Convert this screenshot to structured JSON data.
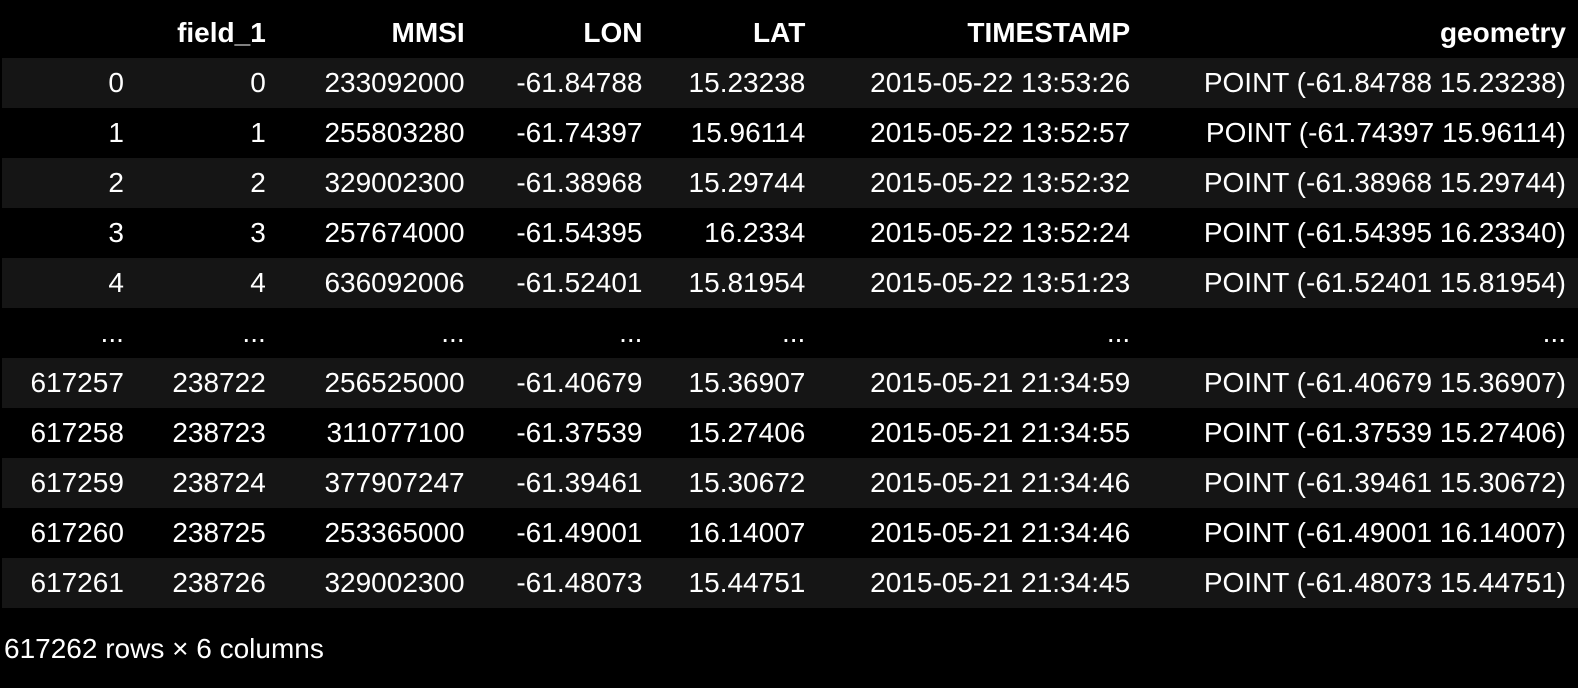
{
  "dataframe": {
    "columns": [
      "",
      "field_1",
      "MMSI",
      "LON",
      "LAT",
      "TIMESTAMP",
      "geometry"
    ],
    "rows": [
      [
        "0",
        "0",
        "233092000",
        "-61.84788",
        "15.23238",
        "2015-05-22 13:53:26",
        "POINT (-61.84788 15.23238)"
      ],
      [
        "1",
        "1",
        "255803280",
        "-61.74397",
        "15.96114",
        "2015-05-22 13:52:57",
        "POINT (-61.74397 15.96114)"
      ],
      [
        "2",
        "2",
        "329002300",
        "-61.38968",
        "15.29744",
        "2015-05-22 13:52:32",
        "POINT (-61.38968 15.29744)"
      ],
      [
        "3",
        "3",
        "257674000",
        "-61.54395",
        "16.2334",
        "2015-05-22 13:52:24",
        "POINT (-61.54395 16.23340)"
      ],
      [
        "4",
        "4",
        "636092006",
        "-61.52401",
        "15.81954",
        "2015-05-22 13:51:23",
        "POINT (-61.52401 15.81954)"
      ],
      [
        "...",
        "...",
        "...",
        "...",
        "...",
        "...",
        "..."
      ],
      [
        "617257",
        "238722",
        "256525000",
        "-61.40679",
        "15.36907",
        "2015-05-21 21:34:59",
        "POINT (-61.40679 15.36907)"
      ],
      [
        "617258",
        "238723",
        "311077100",
        "-61.37539",
        "15.27406",
        "2015-05-21 21:34:55",
        "POINT (-61.37539 15.27406)"
      ],
      [
        "617259",
        "238724",
        "377907247",
        "-61.39461",
        "15.30672",
        "2015-05-21 21:34:46",
        "POINT (-61.39461 15.30672)"
      ],
      [
        "617260",
        "238725",
        "253365000",
        "-61.49001",
        "16.14007",
        "2015-05-21 21:34:46",
        "POINT (-61.49001 16.14007)"
      ],
      [
        "617261",
        "238726",
        "329002300",
        "-61.48073",
        "15.44751",
        "2015-05-21 21:34:45",
        "POINT (-61.48073 15.44751)"
      ]
    ],
    "shape_text": "617262 rows × 6 columns"
  }
}
